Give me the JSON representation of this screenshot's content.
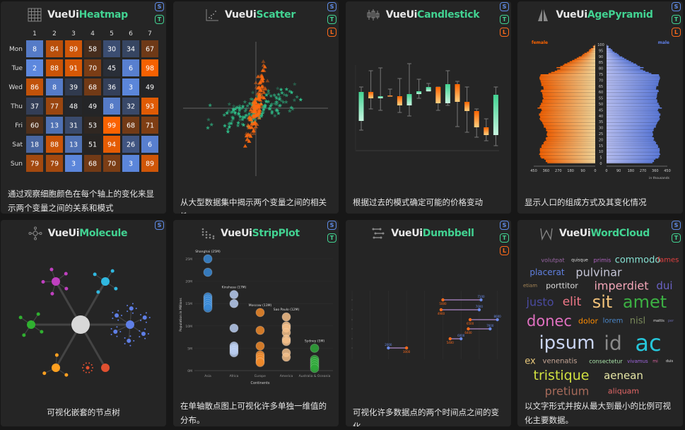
{
  "colors": {
    "accent": "#42d392",
    "blue": "#5f8be6",
    "orange": "#ff6400",
    "card": "#252525"
  },
  "title_prefix": "VueUi",
  "cards": [
    {
      "name": "Heatmap",
      "icon": "grid-icon",
      "badges": [
        "S",
        "T"
      ],
      "description": "通过观察细胞颜色在每个轴上的变化来显示两个变量之间的关系和模式"
    },
    {
      "name": "Scatter",
      "icon": "scatter-icon",
      "badges": [
        "S",
        "T",
        "L"
      ],
      "description": "从大型数据集中揭示两个变量之间的相关性"
    },
    {
      "name": "Candlestick",
      "icon": "candlestick-icon",
      "badges": [
        "S",
        "T",
        "L"
      ],
      "description": "根据过去的模式确定可能的价格变动"
    },
    {
      "name": "AgePyramid",
      "icon": "pyramid-icon",
      "badges": [
        "S",
        "T",
        "L"
      ],
      "description": "显示人口的组成方式及其变化情况"
    },
    {
      "name": "Molecule",
      "icon": "molecule-icon",
      "badges": [
        "S"
      ],
      "description": "可视化嵌套的节点树"
    },
    {
      "name": "StripPlot",
      "icon": "strip-plot-icon",
      "badges": [
        "S",
        "T"
      ],
      "description": "在单轴散点图上可视化许多单独一维值的分布。"
    },
    {
      "name": "Dumbbell",
      "icon": "dumbbell-icon",
      "badges": [
        "S",
        "T",
        "L"
      ],
      "description": "可视化许多数据点的两个时间点之间的变化"
    },
    {
      "name": "WordCloud",
      "icon": "wordcloud-icon",
      "badges": [
        "S",
        "T"
      ],
      "description": "以文字形式并按从最大到最小的比例可视化主要数据。"
    }
  ],
  "heatmap": {
    "columns": [
      "1",
      "2",
      "3",
      "4",
      "5",
      "6",
      "7"
    ],
    "rows": [
      "Mon",
      "Tue",
      "Wed",
      "Thu",
      "Fri",
      "Sat",
      "Sun"
    ],
    "values": [
      [
        8,
        84,
        89,
        58,
        30,
        34,
        67
      ],
      [
        2,
        88,
        91,
        70,
        45,
        6,
        98
      ],
      [
        86,
        8,
        39,
        68,
        36,
        3,
        49
      ],
      [
        37,
        77,
        48,
        49,
        8,
        32,
        93
      ],
      [
        60,
        13,
        31,
        53,
        99,
        68,
        71
      ],
      [
        18,
        88,
        13,
        51,
        94,
        26,
        6
      ],
      [
        79,
        79,
        3,
        68,
        70,
        3,
        89
      ]
    ]
  },
  "candlestick": {
    "candles": [
      [
        42,
        90,
        29,
        83
      ],
      [
        83,
        113,
        59,
        74
      ],
      [
        74,
        117,
        57,
        77
      ],
      [
        78,
        87,
        77,
        77
      ],
      [
        77,
        102,
        54,
        64
      ],
      [
        64,
        123,
        49,
        80
      ],
      [
        80,
        101,
        74,
        84
      ],
      [
        84,
        95,
        84,
        90
      ],
      [
        90,
        90,
        57,
        67
      ],
      [
        67,
        113,
        64,
        94
      ],
      [
        94,
        98,
        34,
        69
      ],
      [
        69,
        90,
        26,
        56
      ],
      [
        56,
        59,
        19,
        33
      ],
      [
        33,
        45,
        14,
        22
      ],
      [
        22,
        90,
        7,
        79
      ]
    ]
  },
  "age_pyramid": {
    "left_label": "female",
    "right_label": "male",
    "unit_label": "in thousands",
    "age_ticks": [
      "0",
      "5",
      "10",
      "15",
      "20",
      "25",
      "30",
      "35",
      "40",
      "45",
      "50",
      "55",
      "60",
      "65",
      "70",
      "75",
      "80",
      "85",
      "90",
      "95",
      "100"
    ],
    "x_ticks_left": [
      "450",
      "360",
      "270",
      "180",
      "90",
      "0"
    ],
    "x_ticks_right": [
      "0",
      "90",
      "180",
      "270",
      "360",
      "450"
    ]
  },
  "strip_plot": {
    "ylabel": "Population in Millions",
    "xlabel": "Continents",
    "y_ticks": [
      "0M",
      "5M",
      "10M",
      "15M",
      "20M",
      "25M"
    ],
    "categories": [
      {
        "label": "Asia",
        "top": "Shanghai (25M)",
        "color": "#3a8ad6",
        "values": [
          25,
          22,
          16.5,
          16,
          15.5,
          15,
          14.5,
          14
        ]
      },
      {
        "label": "Africa",
        "top": "Kinshasa (17M)",
        "color": "#b8cdf0",
        "values": [
          17,
          15,
          9.5,
          5.5,
          5,
          4.5,
          4
        ]
      },
      {
        "label": "Europe",
        "top": "Moscow (13M)",
        "color": "#f08a2a",
        "values": [
          13,
          9,
          5.5,
          3.5,
          3,
          2.5,
          2,
          1.8
        ]
      },
      {
        "label": "America",
        "top": "Sao Paulo (12M)",
        "color": "#f5c08a",
        "values": [
          12,
          10,
          9.5,
          8.5,
          7,
          6.5,
          4,
          3
        ]
      },
      {
        "label": "Australia & Oceania",
        "top": "Sydney (5M)",
        "color": "#2fa83a",
        "values": [
          5,
          2.5,
          2,
          1.5,
          1,
          0.5
        ]
      }
    ]
  },
  "dumbbell": {
    "rows": [
      {
        "start": 5000,
        "end": 7100,
        "start_label": "5000",
        "end_label": "7100"
      },
      {
        "start": 4900,
        "end": 7000,
        "start_label": "4900",
        "end_label": "7000"
      },
      {
        "start": 6500,
        "end": 8000,
        "start_label": "6500",
        "end_label": "8000"
      },
      {
        "start": 6400,
        "end": 7600,
        "start_label": "6400",
        "end_label": "7600"
      },
      {
        "start": 5400,
        "end": 6000,
        "start_label": "5400",
        "end_label": "6000"
      },
      {
        "start": 3000,
        "end": 2000,
        "start_label": "3000",
        "end_label": "2000"
      }
    ]
  },
  "wordcloud": {
    "words": [
      {
        "text": "ipsum",
        "color": "#c9d4f2"
      },
      {
        "text": "id",
        "color": "#8a8a8a"
      },
      {
        "text": "ac",
        "color": "#26c6da"
      },
      {
        "text": "donec",
        "color": "#e070c0"
      },
      {
        "text": "amet",
        "color": "#3cb043"
      },
      {
        "text": "sit",
        "color": "#f2c27a"
      },
      {
        "text": "imperdiet",
        "color": "#f4a6b8"
      },
      {
        "text": "pulvinar",
        "color": "#c4c4d4"
      },
      {
        "text": "commodo",
        "color": "#86e0d2"
      },
      {
        "text": "fames",
        "color": "#e04040"
      },
      {
        "text": "dui",
        "color": "#6a62c6"
      },
      {
        "text": "nisl",
        "color": "#7a8a5a"
      },
      {
        "text": "placerat",
        "color": "#6080e0"
      },
      {
        "text": "porttitor",
        "color": "#dddddd"
      },
      {
        "text": "justo",
        "color": "#4a4aa0"
      },
      {
        "text": "elit",
        "color": "#f07888"
      },
      {
        "text": "dolor",
        "color": "#ff8c00"
      },
      {
        "text": "lorem",
        "color": "#4a86c8"
      },
      {
        "text": "tristique",
        "color": "#d0e040"
      },
      {
        "text": "aenean",
        "color": "#e6e6a6"
      },
      {
        "text": "pretium",
        "color": "#a66a5a"
      },
      {
        "text": "aliquam",
        "color": "#e06666"
      },
      {
        "text": "ex",
        "color": "#e6c67a"
      },
      {
        "text": "venenatis",
        "color": "#c6a696"
      },
      {
        "text": "consectetur",
        "color": "#a6e0a6"
      },
      {
        "text": "vivamus",
        "color": "#a066e0"
      },
      {
        "text": "volutpat",
        "color": "#9a66a6"
      },
      {
        "text": "quisque",
        "color": "#dddddd"
      },
      {
        "text": "primis",
        "color": "#b466c6"
      },
      {
        "text": "etiam",
        "color": "#a68656"
      },
      {
        "text": "mattis",
        "color": "#dddddd"
      },
      {
        "text": "mi",
        "color": "#e066a6"
      },
      {
        "text": "duis",
        "color": "#dddddd"
      },
      {
        "text": "per",
        "color": "#6666a6"
      }
    ]
  }
}
